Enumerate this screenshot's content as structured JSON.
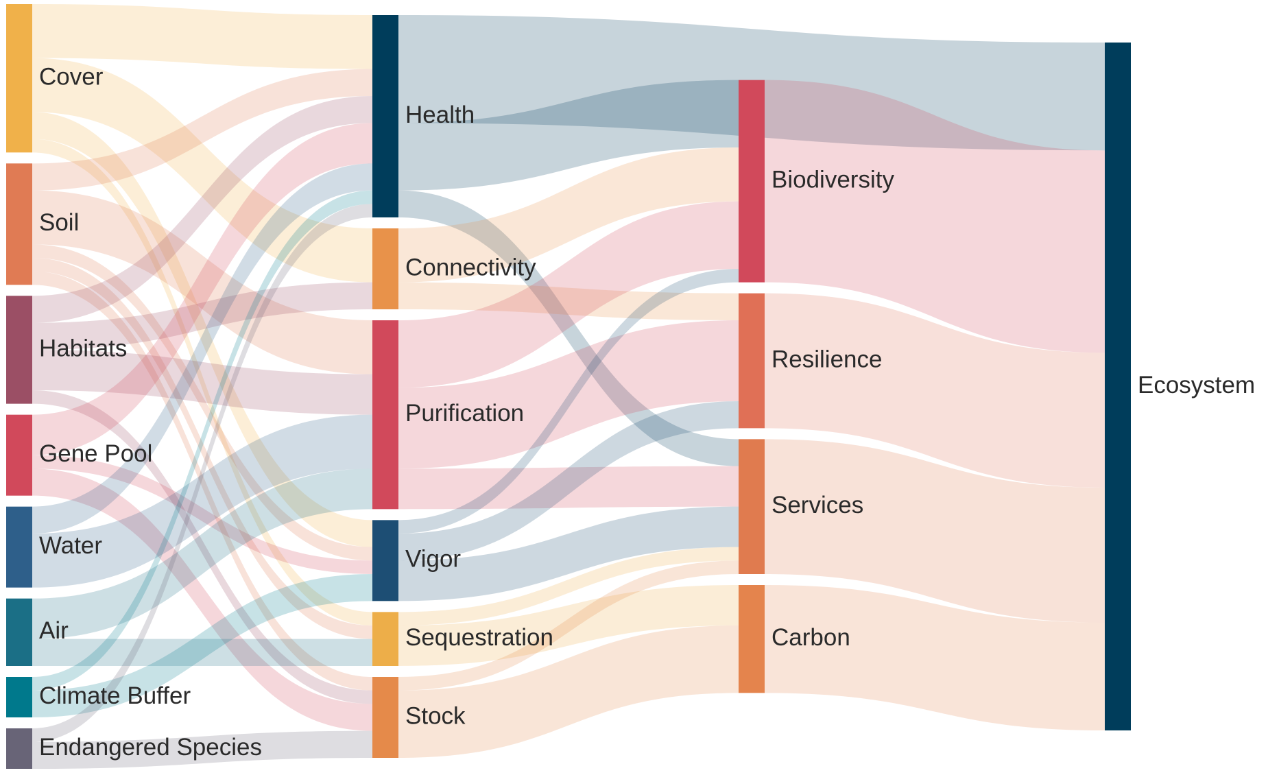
{
  "chart_data": {
    "type": "sankey",
    "nodes": [
      {
        "name": "Cover",
        "color": "#f0b14a"
      },
      {
        "name": "Soil",
        "color": "#e07b54"
      },
      {
        "name": "Habitats",
        "color": "#9b4f65"
      },
      {
        "name": "Gene Pool",
        "color": "#d1495b"
      },
      {
        "name": "Water",
        "color": "#2e5f8a"
      },
      {
        "name": "Air",
        "color": "#1b6f86"
      },
      {
        "name": "Climate Buffer",
        "color": "#00798c"
      },
      {
        "name": "Endangered Species",
        "color": "#686477"
      },
      {
        "name": "Health",
        "color": "#003d5b"
      },
      {
        "name": "Connectivity",
        "color": "#e8924a"
      },
      {
        "name": "Purification",
        "color": "#d1495b"
      },
      {
        "name": "Vigor",
        "color": "#1d4e74"
      },
      {
        "name": "Sequestration",
        "color": "#edae49"
      },
      {
        "name": "Stock",
        "color": "#e58a4a"
      },
      {
        "name": "Biodiversity",
        "color": "#d1495b"
      },
      {
        "name": "Resilience",
        "color": "#e07056"
      },
      {
        "name": "Services",
        "color": "#e07b4f"
      },
      {
        "name": "Carbon",
        "color": "#e4844d"
      },
      {
        "name": "Ecosystem",
        "color": "#003d5b"
      }
    ],
    "links": [
      {
        "source": "Cover",
        "target": "Health",
        "value": 4
      },
      {
        "source": "Cover",
        "target": "Connectivity",
        "value": 4
      },
      {
        "source": "Cover",
        "target": "Vigor",
        "value": 2
      },
      {
        "source": "Cover",
        "target": "Sequestration",
        "value": 1
      },
      {
        "source": "Soil",
        "target": "Health",
        "value": 2
      },
      {
        "source": "Soil",
        "target": "Purification",
        "value": 4
      },
      {
        "source": "Soil",
        "target": "Vigor",
        "value": 1
      },
      {
        "source": "Soil",
        "target": "Sequestration",
        "value": 1
      },
      {
        "source": "Soil",
        "target": "Stock",
        "value": 1
      },
      {
        "source": "Habitats",
        "target": "Health",
        "value": 2
      },
      {
        "source": "Habitats",
        "target": "Connectivity",
        "value": 2
      },
      {
        "source": "Habitats",
        "target": "Purification",
        "value": 3
      },
      {
        "source": "Habitats",
        "target": "Stock",
        "value": 1
      },
      {
        "source": "Gene Pool",
        "target": "Health",
        "value": 3
      },
      {
        "source": "Gene Pool",
        "target": "Vigor",
        "value": 1
      },
      {
        "source": "Gene Pool",
        "target": "Stock",
        "value": 2
      },
      {
        "source": "Water",
        "target": "Health",
        "value": 2
      },
      {
        "source": "Water",
        "target": "Purification",
        "value": 4
      },
      {
        "source": "Air",
        "target": "Purification",
        "value": 3
      },
      {
        "source": "Air",
        "target": "Sequestration",
        "value": 2
      },
      {
        "source": "Climate Buffer",
        "target": "Health",
        "value": 1
      },
      {
        "source": "Climate Buffer",
        "target": "Vigor",
        "value": 2
      },
      {
        "source": "Endangered Species",
        "target": "Health",
        "value": 1
      },
      {
        "source": "Endangered Species",
        "target": "Stock",
        "value": 2
      },
      {
        "source": "Health",
        "target": "Ecosystem",
        "value": 8
      },
      {
        "source": "Health",
        "target": "Biodiversity",
        "value": 5
      },
      {
        "source": "Health",
        "target": "Services",
        "value": 2
      },
      {
        "source": "Connectivity",
        "target": "Biodiversity",
        "value": 4
      },
      {
        "source": "Connectivity",
        "target": "Resilience",
        "value": 2
      },
      {
        "source": "Purification",
        "target": "Biodiversity",
        "value": 5
      },
      {
        "source": "Purification",
        "target": "Resilience",
        "value": 6
      },
      {
        "source": "Purification",
        "target": "Services",
        "value": 3
      },
      {
        "source": "Vigor",
        "target": "Biodiversity",
        "value": 1
      },
      {
        "source": "Vigor",
        "target": "Resilience",
        "value": 2
      },
      {
        "source": "Vigor",
        "target": "Services",
        "value": 3
      },
      {
        "source": "Sequestration",
        "target": "Services",
        "value": 1
      },
      {
        "source": "Sequestration",
        "target": "Carbon",
        "value": 3
      },
      {
        "source": "Stock",
        "target": "Services",
        "value": 1
      },
      {
        "source": "Stock",
        "target": "Carbon",
        "value": 5
      },
      {
        "source": "Biodiversity",
        "target": "Ecosystem",
        "value": 15
      },
      {
        "source": "Resilience",
        "target": "Ecosystem",
        "value": 10
      },
      {
        "source": "Services",
        "target": "Ecosystem",
        "value": 10
      },
      {
        "source": "Carbon",
        "target": "Ecosystem",
        "value": 8
      }
    ]
  }
}
